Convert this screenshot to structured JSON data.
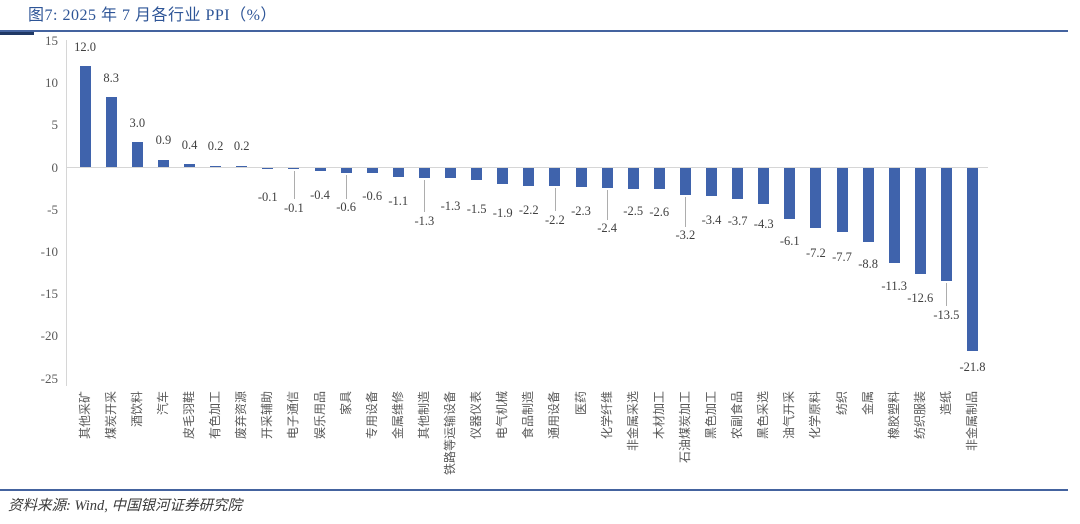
{
  "header": {
    "title": "图7: 2025 年 7 月各行业 PPI（%）"
  },
  "footer": {
    "source": "资料来源: Wind, 中国银河证券研究院"
  },
  "colors": {
    "accent_blue": "#2E5597",
    "bar_blue": "#3F63AC",
    "axis_gray": "#D6D6D6",
    "label_gray": "#404040",
    "tick_gray": "#595959",
    "leader_gray": "#ADADAD",
    "rule_blue": "#44639F"
  },
  "chart_data": {
    "type": "bar",
    "title": "2025 年 7 月各行业 PPI（%）",
    "xlabel": "",
    "ylabel": "",
    "ylim": [
      -25,
      15
    ],
    "yticks": [
      15,
      10,
      5,
      0,
      -5,
      -10,
      -15,
      -20,
      -25
    ],
    "grid": false,
    "legend": "none",
    "bar_color": "#3F63AC",
    "categories": [
      "其他采矿",
      "煤炭开采",
      "酒饮料",
      "汽车",
      "皮毛羽鞋",
      "有色加工",
      "废弃资源",
      "开采辅助",
      "电子通信",
      "娱乐用品",
      "家具",
      "专用设备",
      "金属维修",
      "其他制造",
      "铁路等运输设备",
      "仪器仪表",
      "电气机械",
      "食品制造",
      "通用设备",
      "医药",
      "化学纤维",
      "非金属采选",
      "木材加工",
      "石油煤炭加工",
      "黑色加工",
      "农副食品",
      "黑色采选",
      "油气开采",
      "化学原料",
      "纺织",
      "金属",
      "橡胶塑料",
      "纺织服装",
      "造纸",
      "非金属制品"
    ],
    "values": [
      12.0,
      8.3,
      3.0,
      0.9,
      0.4,
      0.2,
      0.2,
      -0.1,
      -0.1,
      -0.4,
      -0.6,
      -0.6,
      -1.1,
      -1.3,
      -1.3,
      -1.5,
      -1.9,
      -2.2,
      -2.2,
      -2.3,
      -2.4,
      -2.5,
      -2.6,
      -3.2,
      -3.4,
      -3.7,
      -4.3,
      -6.1,
      -7.2,
      -7.7,
      -8.8,
      -11.3,
      -12.6,
      -13.5,
      -21.8
    ],
    "value_labels": [
      "12.0",
      "8.3",
      "3.0",
      "0.9",
      "0.4",
      "0.2",
      "0.2",
      "-0.1",
      "-0.1",
      "-0.4",
      "-0.6",
      "-0.6",
      "-1.1",
      "-1.3",
      "-1.3",
      "-1.5",
      "-1.9",
      "-2.2",
      "-2.2",
      "-2.3",
      "-2.4",
      "-2.5",
      "-2.6",
      "-3.2",
      "-3.4",
      "-3.7",
      "-4.3",
      "-6.1",
      "-7.2",
      "-7.7",
      "-8.8",
      "-11.3",
      "-12.6",
      "-13.5",
      "-21.8"
    ],
    "label_extra_dy": [
      0,
      0,
      0,
      0,
      0,
      0,
      0,
      15,
      26,
      12,
      22,
      11,
      12,
      30,
      15,
      16,
      17,
      11,
      21,
      12,
      28,
      10,
      10,
      28,
      11,
      10,
      8,
      10,
      12,
      12,
      10,
      11,
      12,
      21,
      3
    ],
    "leader_bars": [
      8,
      10,
      13,
      18,
      20,
      23,
      33
    ]
  }
}
